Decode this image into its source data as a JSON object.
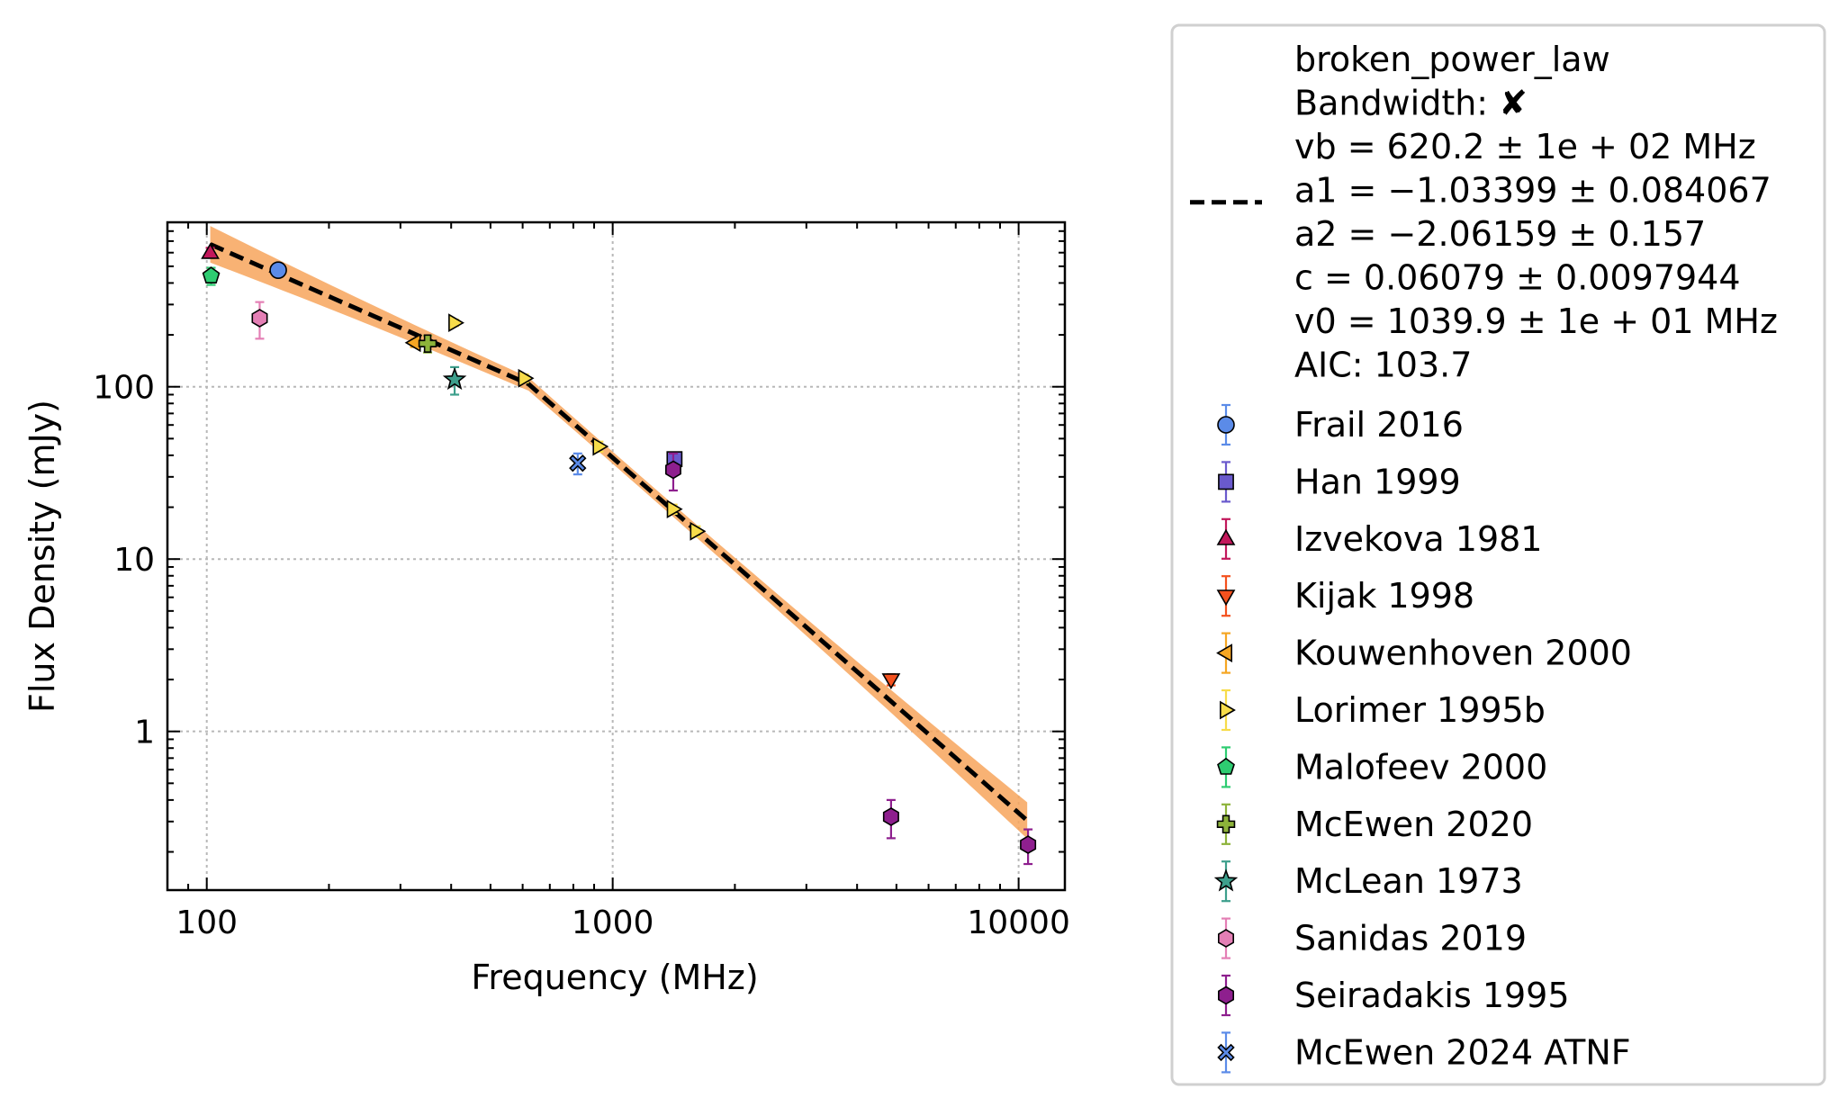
{
  "chart_data": {
    "type": "scatter",
    "title": "",
    "xlabel": "Frequency (MHz)",
    "ylabel": "Flux Density (mJy)",
    "xscale": "log",
    "yscale": "log",
    "xlim": [
      80,
      13000
    ],
    "ylim": [
      0.12,
      900
    ],
    "grid": true,
    "legend_position": "outside-right",
    "x_ticks": [
      {
        "value": 100,
        "label": "100"
      },
      {
        "value": 1000,
        "label": "1000"
      },
      {
        "value": 10000,
        "label": "10000"
      }
    ],
    "y_ticks": [
      {
        "value": 1,
        "label": "1"
      },
      {
        "value": 10,
        "label": "10"
      },
      {
        "value": 100,
        "label": "100"
      }
    ],
    "fit": {
      "model": "broken_power_law",
      "lines": [
        "broken_power_law",
        "Bandwidth: ✘",
        "vb = 620.2 ± 1e + 02 MHz",
        "a1 = −1.03399 ± 0.084067",
        "a2 = −2.06159 ± 0.157",
        "c = 0.06079 ± 0.0097944",
        "v0 = 1039.9 ± 1e + 01 MHz",
        "AIC: 103.7"
      ],
      "params": {
        "vb": 620.2,
        "a1": -1.03399,
        "a2": -2.06159,
        "c": 0.06079,
        "v0": 1039.9
      },
      "x_range": [
        102,
        10500
      ],
      "color": "#000000",
      "band_color": "#f7a55c"
    },
    "series": [
      {
        "name": "Frail 2016",
        "marker": "circle",
        "color": "#5b8be8",
        "points": [
          {
            "x": 150,
            "y": 475,
            "err": 25
          }
        ]
      },
      {
        "name": "Han 1999",
        "marker": "square",
        "color": "#6a5acd",
        "points": [
          {
            "x": 1420,
            "y": 38,
            "err": 3
          }
        ]
      },
      {
        "name": "Izvekova 1981",
        "marker": "triangle-up",
        "color": "#c2185b",
        "points": [
          {
            "x": 102,
            "y": 600,
            "err": 40
          }
        ]
      },
      {
        "name": "Kijak 1998",
        "marker": "triangle-down",
        "color": "#f4511e",
        "points": [
          {
            "x": 4850,
            "y": 2.0,
            "err": 0.15
          }
        ]
      },
      {
        "name": "Kouwenhoven 2000",
        "marker": "triangle-left",
        "color": "#f5a623",
        "points": [
          {
            "x": 325,
            "y": 180,
            "err": 10
          }
        ]
      },
      {
        "name": "Lorimer 1995b",
        "marker": "triangle-right",
        "color": "#f7dc4a",
        "points": [
          {
            "x": 408,
            "y": 235,
            "err": 10
          },
          {
            "x": 606,
            "y": 112,
            "err": 6
          },
          {
            "x": 925,
            "y": 45,
            "err": 3
          },
          {
            "x": 1408,
            "y": 19.5,
            "err": 1.2
          },
          {
            "x": 1606,
            "y": 14.5,
            "err": 1
          }
        ]
      },
      {
        "name": "Malofeev 2000",
        "marker": "pentagon",
        "color": "#2ecc71",
        "points": [
          {
            "x": 102.5,
            "y": 440,
            "err": 50
          }
        ]
      },
      {
        "name": "McEwen 2020",
        "marker": "plus",
        "color": "#8db33a",
        "points": [
          {
            "x": 350,
            "y": 178,
            "err": 20
          }
        ]
      },
      {
        "name": "McLean 1973",
        "marker": "star",
        "color": "#3d9f8c",
        "points": [
          {
            "x": 408,
            "y": 110,
            "err": 20
          }
        ]
      },
      {
        "name": "Sanidas 2019",
        "marker": "hexagon",
        "color": "#e47fb5",
        "points": [
          {
            "x": 135,
            "y": 250,
            "err": 60
          }
        ]
      },
      {
        "name": "Seiradakis 1995",
        "marker": "hexagon",
        "color": "#8e1f8e",
        "points": [
          {
            "x": 1410,
            "y": 33,
            "err": 8
          },
          {
            "x": 4850,
            "y": 0.32,
            "err": 0.08
          },
          {
            "x": 10550,
            "y": 0.22,
            "err": 0.05
          }
        ]
      },
      {
        "name": "McEwen 2024 ATNF",
        "marker": "x",
        "color": "#5b8be8",
        "points": [
          {
            "x": 820,
            "y": 36,
            "err": 5
          }
        ]
      }
    ]
  }
}
